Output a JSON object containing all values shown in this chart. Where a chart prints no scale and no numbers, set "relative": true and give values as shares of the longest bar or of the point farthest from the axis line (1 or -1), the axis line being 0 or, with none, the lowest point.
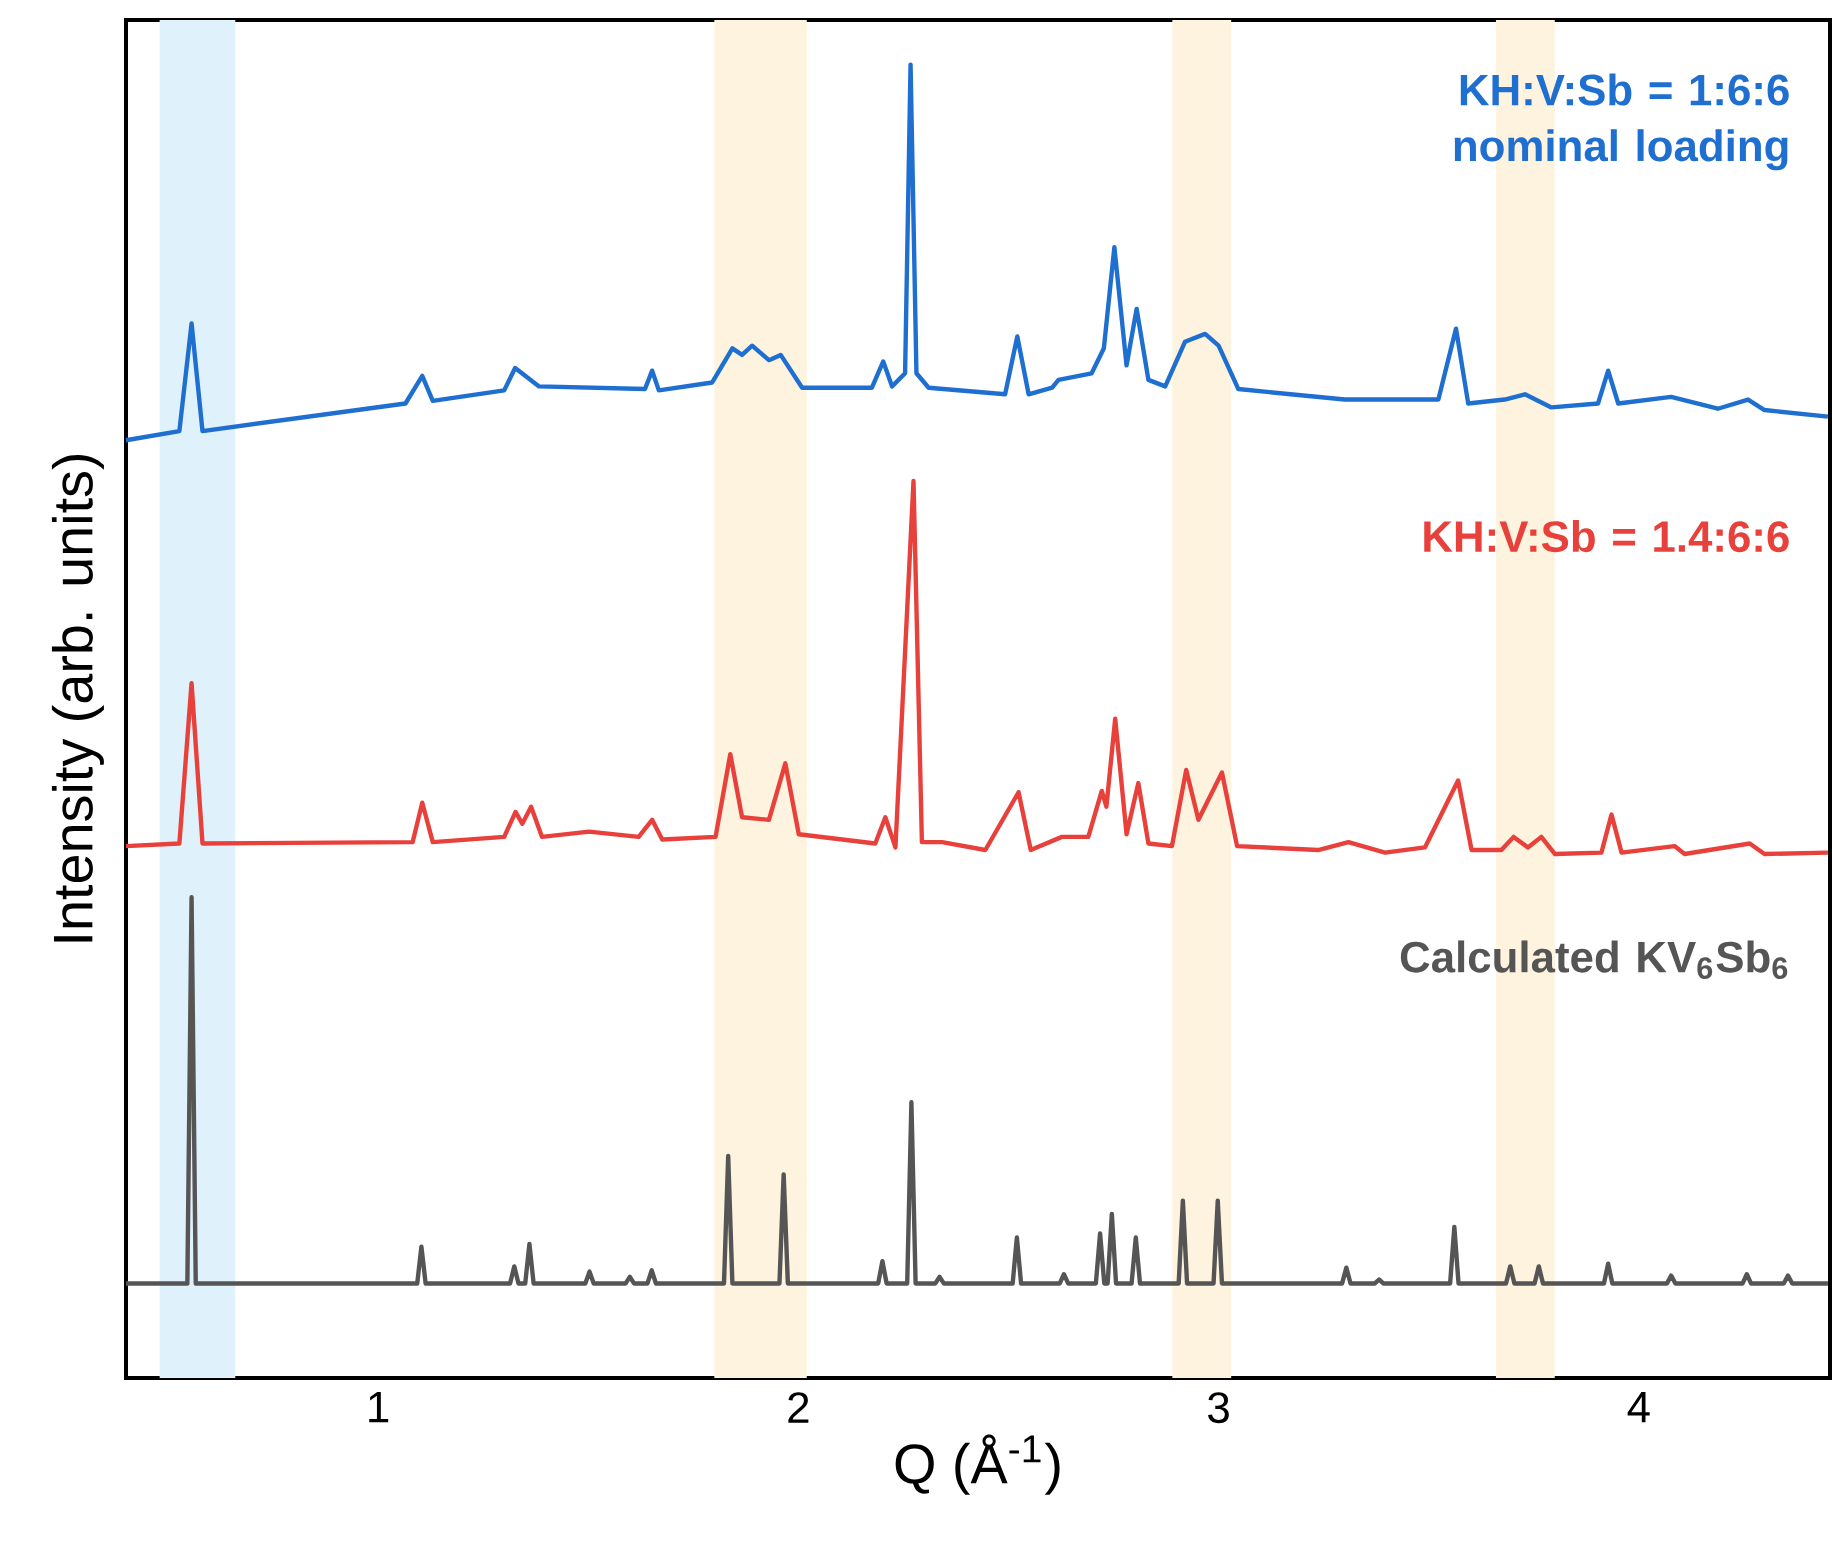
{
  "chart_data": {
    "type": "line",
    "xlabel": "Q (Å$^{-1}$)",
    "ylabel": "Intensity (arb. units)",
    "relative": true,
    "xlim": [
      0.4,
      4.455
    ],
    "xticks": [
      1,
      2,
      3,
      4
    ],
    "bands": [
      {
        "axis": "x",
        "from": 0.48,
        "to": 0.66,
        "color": "#dff1fb"
      },
      {
        "axis": "x",
        "from": 1.8,
        "to": 2.02,
        "color": "#fdf3de"
      },
      {
        "axis": "x",
        "from": 2.89,
        "to": 3.03,
        "color": "#fdf3de"
      },
      {
        "axis": "x",
        "from": 3.66,
        "to": 3.8,
        "color": "#fdf3de"
      }
    ],
    "series": [
      {
        "name": "KH:V:Sb = 1:6:6 nominal loading",
        "color": "#1f6fd1",
        "x": [
          0.4,
          0.527,
          0.556,
          0.582,
          1.065,
          1.105,
          1.13,
          1.3,
          1.326,
          1.383,
          1.635,
          1.652,
          1.668,
          1.795,
          1.843,
          1.866,
          1.89,
          1.93,
          1.958,
          2.009,
          2.175,
          2.202,
          2.223,
          2.254,
          2.267,
          2.281,
          2.31,
          2.492,
          2.521,
          2.548,
          2.604,
          2.619,
          2.698,
          2.727,
          2.752,
          2.781,
          2.805,
          2.833,
          2.873,
          2.92,
          2.968,
          3.0,
          3.047,
          3.3,
          3.523,
          3.565,
          3.594,
          3.681,
          3.729,
          3.792,
          3.903,
          3.927,
          3.951,
          4.077,
          4.188,
          4.26,
          4.299,
          4.45
        ],
        "values": [
          0.714,
          0.721,
          0.803,
          0.721,
          0.742,
          0.763,
          0.744,
          0.752,
          0.769,
          0.755,
          0.753,
          0.767,
          0.752,
          0.758,
          0.784,
          0.779,
          0.786,
          0.775,
          0.779,
          0.754,
          0.754,
          0.774,
          0.755,
          0.765,
          1.0,
          0.765,
          0.754,
          0.749,
          0.793,
          0.749,
          0.754,
          0.76,
          0.765,
          0.784,
          0.861,
          0.771,
          0.814,
          0.76,
          0.755,
          0.789,
          0.795,
          0.786,
          0.753,
          0.745,
          0.745,
          0.799,
          0.742,
          0.745,
          0.749,
          0.739,
          0.742,
          0.767,
          0.742,
          0.747,
          0.738,
          0.745,
          0.737,
          0.732
        ]
      },
      {
        "name": "KH:V:Sb = 1.4:6:6",
        "color": "#e8413c",
        "x": [
          0.4,
          0.527,
          0.556,
          0.582,
          1.082,
          1.105,
          1.13,
          1.3,
          1.327,
          1.343,
          1.364,
          1.39,
          1.502,
          1.62,
          1.652,
          1.676,
          1.803,
          1.838,
          1.866,
          1.93,
          1.969,
          2.001,
          2.183,
          2.207,
          2.231,
          2.274,
          2.294,
          2.342,
          2.445,
          2.524,
          2.553,
          2.627,
          2.69,
          2.722,
          2.733,
          2.754,
          2.781,
          2.809,
          2.833,
          2.889,
          2.923,
          2.952,
          3.008,
          3.044,
          3.237,
          3.309,
          3.396,
          3.491,
          3.57,
          3.602,
          3.673,
          3.702,
          3.736,
          3.768,
          3.8,
          3.911,
          3.935,
          3.959,
          4.085,
          4.109,
          4.264,
          4.299,
          4.45
        ],
        "values": [
          0.405,
          0.407,
          0.529,
          0.407,
          0.408,
          0.438,
          0.408,
          0.412,
          0.431,
          0.422,
          0.435,
          0.412,
          0.416,
          0.412,
          0.425,
          0.41,
          0.412,
          0.475,
          0.427,
          0.425,
          0.468,
          0.414,
          0.407,
          0.427,
          0.404,
          0.683,
          0.408,
          0.408,
          0.402,
          0.446,
          0.402,
          0.412,
          0.412,
          0.447,
          0.435,
          0.502,
          0.414,
          0.453,
          0.407,
          0.405,
          0.463,
          0.425,
          0.461,
          0.405,
          0.402,
          0.408,
          0.4,
          0.404,
          0.455,
          0.402,
          0.402,
          0.412,
          0.404,
          0.412,
          0.399,
          0.4,
          0.429,
          0.4,
          0.405,
          0.399,
          0.407,
          0.399,
          0.4
        ]
      },
      {
        "name": "Calculated KV$_{6}$Sb$_{6}$",
        "color": "#555555",
        "x": [
          0.4,
          0.546,
          0.556,
          0.566,
          1.093,
          1.103,
          1.113,
          1.314,
          1.324,
          1.334,
          1.35,
          1.36,
          1.37,
          1.493,
          1.503,
          1.513,
          1.589,
          1.599,
          1.609,
          1.641,
          1.651,
          1.661,
          1.823,
          1.833,
          1.843,
          1.955,
          1.965,
          1.975,
          2.19,
          2.2,
          2.21,
          2.259,
          2.269,
          2.279,
          2.326,
          2.336,
          2.346,
          2.51,
          2.52,
          2.53,
          2.622,
          2.632,
          2.642,
          2.708,
          2.718,
          2.728,
          2.736,
          2.746,
          2.756,
          2.793,
          2.803,
          2.813,
          2.905,
          2.915,
          2.925,
          2.988,
          2.998,
          3.008,
          3.294,
          3.304,
          3.314,
          3.372,
          3.382,
          3.392,
          3.551,
          3.561,
          3.571,
          3.684,
          3.694,
          3.704,
          3.752,
          3.762,
          3.772,
          3.917,
          3.927,
          3.937,
          4.067,
          4.077,
          4.087,
          4.247,
          4.257,
          4.267,
          4.345,
          4.355,
          4.365,
          4.45
        ],
        "values": [
          0.072,
          0.072,
          0.366,
          0.072,
          0.072,
          0.1,
          0.072,
          0.072,
          0.085,
          0.072,
          0.072,
          0.102,
          0.072,
          0.072,
          0.081,
          0.072,
          0.072,
          0.077,
          0.072,
          0.072,
          0.082,
          0.072,
          0.072,
          0.169,
          0.072,
          0.072,
          0.155,
          0.072,
          0.072,
          0.089,
          0.072,
          0.072,
          0.21,
          0.072,
          0.072,
          0.077,
          0.072,
          0.072,
          0.107,
          0.072,
          0.072,
          0.079,
          0.072,
          0.072,
          0.11,
          0.072,
          0.072,
          0.125,
          0.072,
          0.072,
          0.107,
          0.072,
          0.072,
          0.135,
          0.072,
          0.072,
          0.135,
          0.072,
          0.072,
          0.084,
          0.072,
          0.072,
          0.075,
          0.072,
          0.072,
          0.115,
          0.072,
          0.072,
          0.085,
          0.072,
          0.072,
          0.085,
          0.072,
          0.072,
          0.087,
          0.072,
          0.072,
          0.078,
          0.072,
          0.072,
          0.079,
          0.072,
          0.072,
          0.078,
          0.072,
          0.072
        ]
      }
    ]
  }
}
